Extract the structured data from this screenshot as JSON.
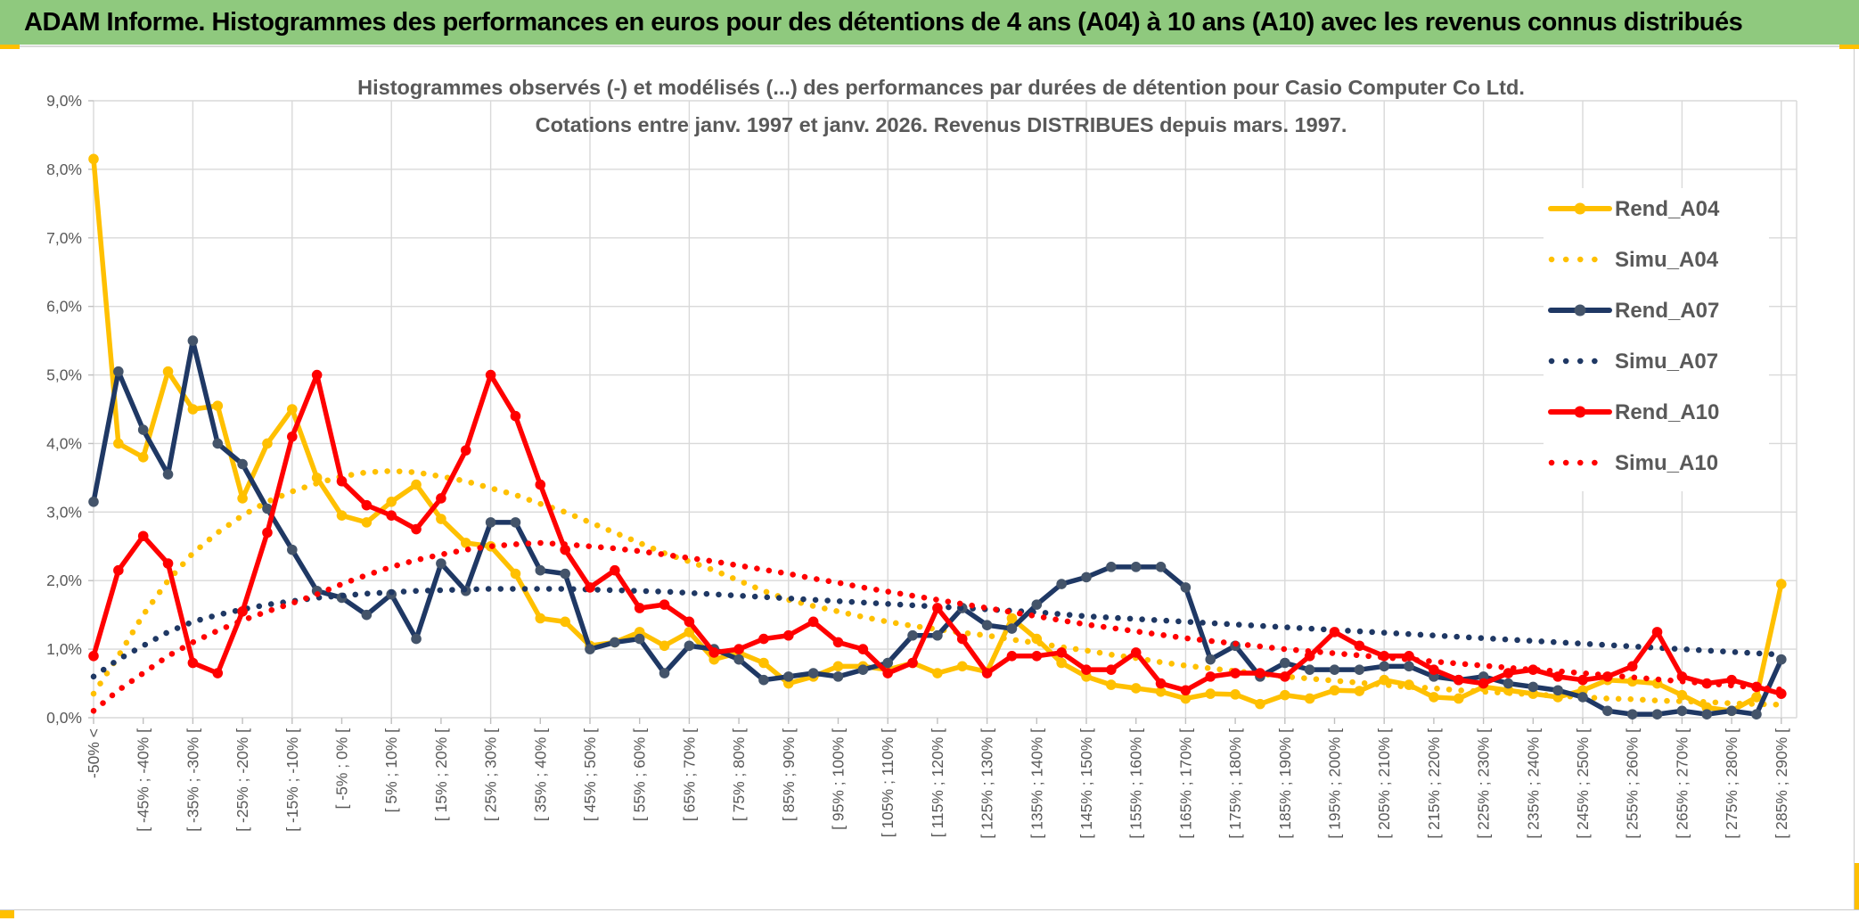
{
  "header": {
    "title": "ADAM Informe. Histogrammes des performances en euros pour des détentions de 4 ans (A04) à 10 ans (A10) avec les revenus connus distribués"
  },
  "colors": {
    "header_bg": "#8FC97E",
    "accent_gold": "#FFC000",
    "navy": "#1F3864",
    "navy_marker": "#44546A",
    "red": "#FF0000",
    "text_gray": "#595959",
    "gridline": "#D9D9D9",
    "axis": "#BFBFBF",
    "background": "#FFFFFF"
  },
  "chart_data": {
    "type": "line",
    "title_line1": "Histogrammes observés (-) et modélisés (...) des performances par durées de détention pour Casio Computer Co Ltd.",
    "title_line2": "Cotations entre janv. 1997 et janv. 2026. Revenus DISTRIBUES depuis mars. 1997.",
    "grid": true,
    "legend_position": "right-top",
    "ylim": [
      0,
      9
    ],
    "y_tick_labels": [
      "0,0%",
      "1,0%",
      "2,0%",
      "3,0%",
      "4,0%",
      "5,0%",
      "6,0%",
      "7,0%",
      "8,0%",
      "9,0%"
    ],
    "x_tick_labels": [
      "-50% <",
      "[ -45% ; -40% [",
      "[ -35% ; -30% [",
      "[ -25% ; -20% [",
      "[ -15% ; -10% [",
      "[ -5% ; 0% [",
      "[ 5% ; 10% [",
      "[ 15% ; 20% [",
      "[ 25% ; 30% [",
      "[ 35% ; 40% [",
      "[ 45% ; 50% [",
      "[ 55% ; 60% [",
      "[ 65% ; 70% [",
      "[ 75% ; 80% [",
      "[ 85% ; 90% [",
      "[ 95% ; 100% [",
      "[ 105% ; 110% [",
      "[ 115% ; 120% [",
      "[ 125% ; 130% [",
      "[ 135% ; 140% [",
      "[ 145% ; 150% [",
      "[ 155% ; 160% [",
      "[ 165% ; 170% [",
      "[ 175% ; 180% [",
      "[ 185% ; 190% [",
      "[ 195% ; 200% [",
      "[ 205% ; 210% [",
      "[ 215% ; 220% [",
      "[ 225% ; 230% [",
      "[ 235% ; 240% [",
      "[ 245% ; 250% [",
      "[ 255% ; 260% [",
      "[ 265% ; 270% [",
      "[ 275% ; 280% [",
      "[ 285% ; 290% ["
    ],
    "points_per_label": 2,
    "n_points": 69,
    "series": [
      {
        "name": "Rend_A04",
        "style": "solid",
        "color": "#FFC000",
        "marker_color": "#FFC000",
        "values": [
          8.15,
          4.0,
          3.8,
          5.05,
          4.5,
          4.55,
          3.2,
          4.0,
          4.5,
          3.5,
          2.95,
          2.85,
          3.15,
          3.4,
          2.9,
          2.55,
          2.5,
          2.1,
          1.45,
          1.4,
          1.05,
          1.1,
          1.25,
          1.05,
          1.25,
          0.85,
          0.95,
          0.8,
          0.5,
          0.6,
          0.75,
          0.75,
          0.7,
          0.8,
          0.65,
          0.75,
          0.67,
          1.45,
          1.15,
          0.8,
          0.6,
          0.48,
          0.43,
          0.38,
          0.28,
          0.35,
          0.34,
          0.2,
          0.33,
          0.28,
          0.4,
          0.39,
          0.55,
          0.48,
          0.3,
          0.28,
          0.45,
          0.4,
          0.35,
          0.3,
          0.4,
          0.55,
          0.53,
          0.5,
          0.33,
          0.15,
          0.1,
          0.3,
          1.95
        ]
      },
      {
        "name": "Simu_A04",
        "style": "dotted",
        "color": "#FFC000",
        "values": [
          0.35,
          0.9,
          1.5,
          2.0,
          2.4,
          2.7,
          2.95,
          3.15,
          3.3,
          3.42,
          3.52,
          3.58,
          3.6,
          3.58,
          3.52,
          3.45,
          3.35,
          3.25,
          3.12,
          3.0,
          2.85,
          2.7,
          2.55,
          2.4,
          2.28,
          2.15,
          2.0,
          1.85,
          1.72,
          1.63,
          1.55,
          1.47,
          1.4,
          1.34,
          1.29,
          1.24,
          1.2,
          1.14,
          1.09,
          1.03,
          0.98,
          0.92,
          0.87,
          0.81,
          0.76,
          0.72,
          0.68,
          0.64,
          0.6,
          0.57,
          0.54,
          0.51,
          0.48,
          0.45,
          0.43,
          0.4,
          0.38,
          0.36,
          0.34,
          0.32,
          0.3,
          0.28,
          0.27,
          0.25,
          0.24,
          0.23,
          0.21,
          0.2,
          0.19
        ]
      },
      {
        "name": "Rend_A07",
        "style": "solid",
        "color": "#1F3864",
        "marker_color": "#44546A",
        "values": [
          3.15,
          5.05,
          4.2,
          3.55,
          5.5,
          4.0,
          3.7,
          3.05,
          2.45,
          1.85,
          1.75,
          1.5,
          1.8,
          1.15,
          2.25,
          1.85,
          2.85,
          2.85,
          2.15,
          2.1,
          1.0,
          1.1,
          1.15,
          0.65,
          1.05,
          1.0,
          0.85,
          0.55,
          0.6,
          0.65,
          0.6,
          0.7,
          0.8,
          1.2,
          1.2,
          1.6,
          1.35,
          1.3,
          1.65,
          1.95,
          2.05,
          2.2,
          2.2,
          2.2,
          1.9,
          0.85,
          1.05,
          0.6,
          0.8,
          0.7,
          0.7,
          0.7,
          0.75,
          0.75,
          0.6,
          0.55,
          0.6,
          0.5,
          0.45,
          0.4,
          0.3,
          0.1,
          0.05,
          0.05,
          0.1,
          0.05,
          0.1,
          0.05,
          0.85
        ]
      },
      {
        "name": "Simu_A07",
        "style": "dotted",
        "color": "#1F3864",
        "values": [
          0.6,
          0.85,
          1.05,
          1.25,
          1.4,
          1.5,
          1.58,
          1.65,
          1.7,
          1.75,
          1.78,
          1.81,
          1.83,
          1.85,
          1.86,
          1.87,
          1.88,
          1.88,
          1.88,
          1.88,
          1.87,
          1.86,
          1.85,
          1.84,
          1.82,
          1.8,
          1.78,
          1.76,
          1.74,
          1.72,
          1.7,
          1.68,
          1.66,
          1.64,
          1.62,
          1.6,
          1.58,
          1.56,
          1.54,
          1.51,
          1.48,
          1.46,
          1.44,
          1.42,
          1.4,
          1.38,
          1.36,
          1.34,
          1.32,
          1.3,
          1.28,
          1.26,
          1.24,
          1.22,
          1.2,
          1.18,
          1.16,
          1.14,
          1.12,
          1.1,
          1.08,
          1.06,
          1.04,
          1.02,
          1.0,
          0.98,
          0.96,
          0.94,
          0.92
        ]
      },
      {
        "name": "Rend_A10",
        "style": "solid",
        "color": "#FF0000",
        "marker_color": "#FF0000",
        "values": [
          0.9,
          2.15,
          2.65,
          2.25,
          0.8,
          0.65,
          1.55,
          2.7,
          4.1,
          5.0,
          3.45,
          3.1,
          2.95,
          2.75,
          3.2,
          3.9,
          5.0,
          4.4,
          3.4,
          2.45,
          1.9,
          2.15,
          1.6,
          1.65,
          1.4,
          0.95,
          1.0,
          1.15,
          1.2,
          1.4,
          1.1,
          1.0,
          0.65,
          0.8,
          1.6,
          1.15,
          0.65,
          0.9,
          0.9,
          0.95,
          0.7,
          0.7,
          0.95,
          0.5,
          0.4,
          0.6,
          0.65,
          0.65,
          0.6,
          0.9,
          1.25,
          1.05,
          0.9,
          0.9,
          0.7,
          0.55,
          0.5,
          0.65,
          0.7,
          0.6,
          0.55,
          0.6,
          0.75,
          1.25,
          0.6,
          0.5,
          0.55,
          0.45,
          0.35
        ]
      },
      {
        "name": "Simu_A10",
        "style": "dotted",
        "color": "#FF0000",
        "values": [
          0.1,
          0.4,
          0.65,
          0.9,
          1.1,
          1.27,
          1.42,
          1.55,
          1.67,
          1.8,
          1.95,
          2.08,
          2.2,
          2.3,
          2.38,
          2.45,
          2.5,
          2.53,
          2.55,
          2.53,
          2.5,
          2.47,
          2.43,
          2.38,
          2.33,
          2.28,
          2.22,
          2.16,
          2.1,
          2.03,
          1.97,
          1.9,
          1.84,
          1.78,
          1.72,
          1.66,
          1.6,
          1.54,
          1.48,
          1.42,
          1.36,
          1.31,
          1.26,
          1.21,
          1.16,
          1.12,
          1.08,
          1.04,
          1.0,
          0.97,
          0.94,
          0.91,
          0.88,
          0.85,
          0.82,
          0.79,
          0.76,
          0.73,
          0.7,
          0.68,
          0.65,
          0.62,
          0.59,
          0.56,
          0.53,
          0.5,
          0.47,
          0.44,
          0.41
        ]
      }
    ]
  }
}
